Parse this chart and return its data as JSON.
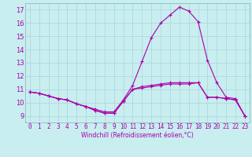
{
  "xlabel": "Windchill (Refroidissement éolien,°C)",
  "background_color": "#c8eef0",
  "grid_color": "#b0d8dc",
  "line_color": "#aa00aa",
  "spine_color": "#80b0b8",
  "xlim": [
    -0.5,
    23.5
  ],
  "ylim": [
    8.5,
    17.5
  ],
  "xticks": [
    0,
    1,
    2,
    3,
    4,
    5,
    6,
    7,
    8,
    9,
    10,
    11,
    12,
    13,
    14,
    15,
    16,
    17,
    18,
    19,
    20,
    21,
    22,
    23
  ],
  "yticks": [
    9,
    10,
    11,
    12,
    13,
    14,
    15,
    16,
    17
  ],
  "series": [
    [
      10.8,
      10.7,
      10.5,
      10.3,
      10.2,
      9.9,
      9.7,
      9.4,
      9.2,
      9.2,
      10.1,
      11.0,
      11.1,
      11.2,
      11.3,
      11.4,
      11.4,
      11.4,
      11.5,
      10.4,
      10.4,
      10.3,
      10.2,
      9.0
    ],
    [
      10.8,
      10.7,
      10.5,
      10.3,
      10.2,
      9.9,
      9.7,
      9.5,
      9.3,
      9.3,
      10.2,
      11.3,
      13.1,
      14.9,
      16.0,
      16.6,
      17.2,
      16.9,
      16.1,
      13.2,
      11.5,
      10.4,
      10.3,
      9.0
    ],
    [
      10.8,
      10.7,
      10.5,
      10.3,
      10.2,
      9.9,
      9.7,
      9.4,
      9.2,
      9.2,
      10.1,
      11.0,
      11.2,
      11.3,
      11.4,
      11.5,
      11.5,
      11.5,
      11.5,
      10.4,
      10.4,
      10.3,
      10.2,
      9.0
    ]
  ],
  "tick_fontsize": 5.5,
  "xlabel_fontsize": 5.5
}
